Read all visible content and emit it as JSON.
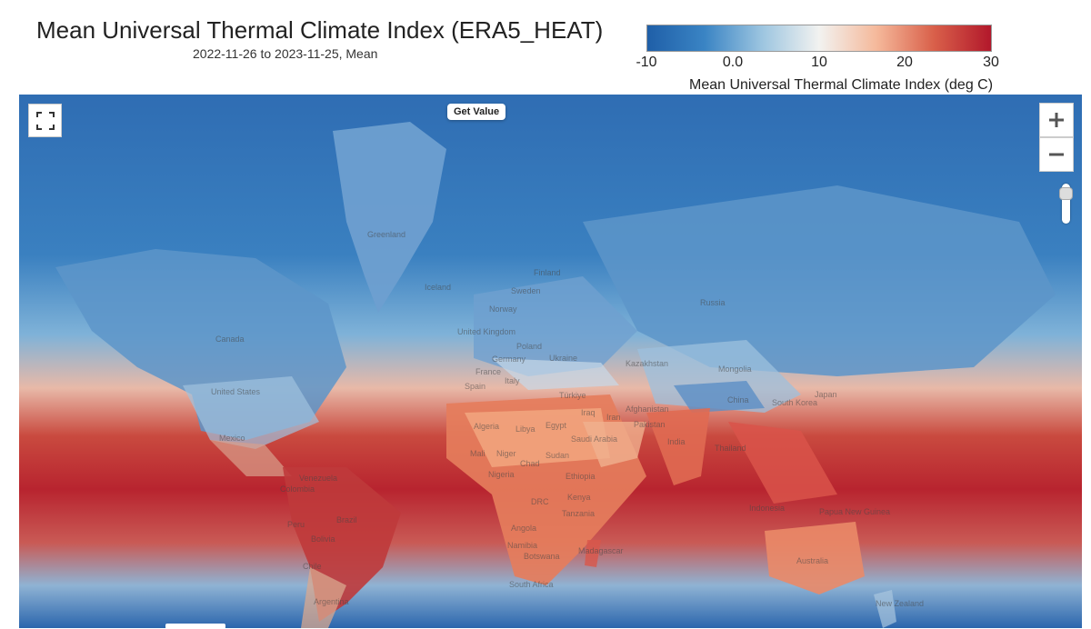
{
  "header": {
    "title": "Mean Universal Thermal Climate Index (ERA5_HEAT)",
    "subtitle": "2022-11-26 to 2023-11-25, Mean"
  },
  "colorbar": {
    "label": "Mean Universal Thermal Climate Index (deg C)",
    "ticks": [
      "-10",
      "0.0",
      "10",
      "20",
      "30"
    ],
    "min": -10,
    "max": 30,
    "colors": [
      "#1f5fa8",
      "#3a84c4",
      "#9cc5e0",
      "#f2f2f0",
      "#f5b99b",
      "#d9604a",
      "#b2182b"
    ]
  },
  "map": {
    "get_value_label": "Get Value",
    "controls": {
      "fullscreen_icon": "fullscreen-icon",
      "zoom_in_icon": "plus-icon",
      "zoom_out_icon": "minus-icon"
    },
    "labels": [
      "Greenland",
      "Iceland",
      "Finland",
      "Sweden",
      "Norway",
      "Russia",
      "United Kingdom",
      "Poland",
      "Ukraine",
      "Germany",
      "France",
      "Spain",
      "Italy",
      "Kazakhstan",
      "Mongolia",
      "Türkiye",
      "China",
      "South Korea",
      "Japan",
      "Afghanistan",
      "Iran",
      "Iraq",
      "Pakistan",
      "India",
      "Thailand",
      "Egypt",
      "Libya",
      "Algeria",
      "Saudi Arabia",
      "Mali",
      "Niger",
      "Chad",
      "Sudan",
      "Ethiopia",
      "Nigeria",
      "Kenya",
      "DRC",
      "Tanzania",
      "Angola",
      "Namibia",
      "Botswana",
      "Madagascar",
      "South Africa",
      "Canada",
      "United States",
      "Mexico",
      "Venezuela",
      "Colombia",
      "Peru",
      "Brazil",
      "Bolivia",
      "Chile",
      "Argentina",
      "Indonesia",
      "Papua New Guinea",
      "Australia",
      "New Zealand"
    ]
  }
}
